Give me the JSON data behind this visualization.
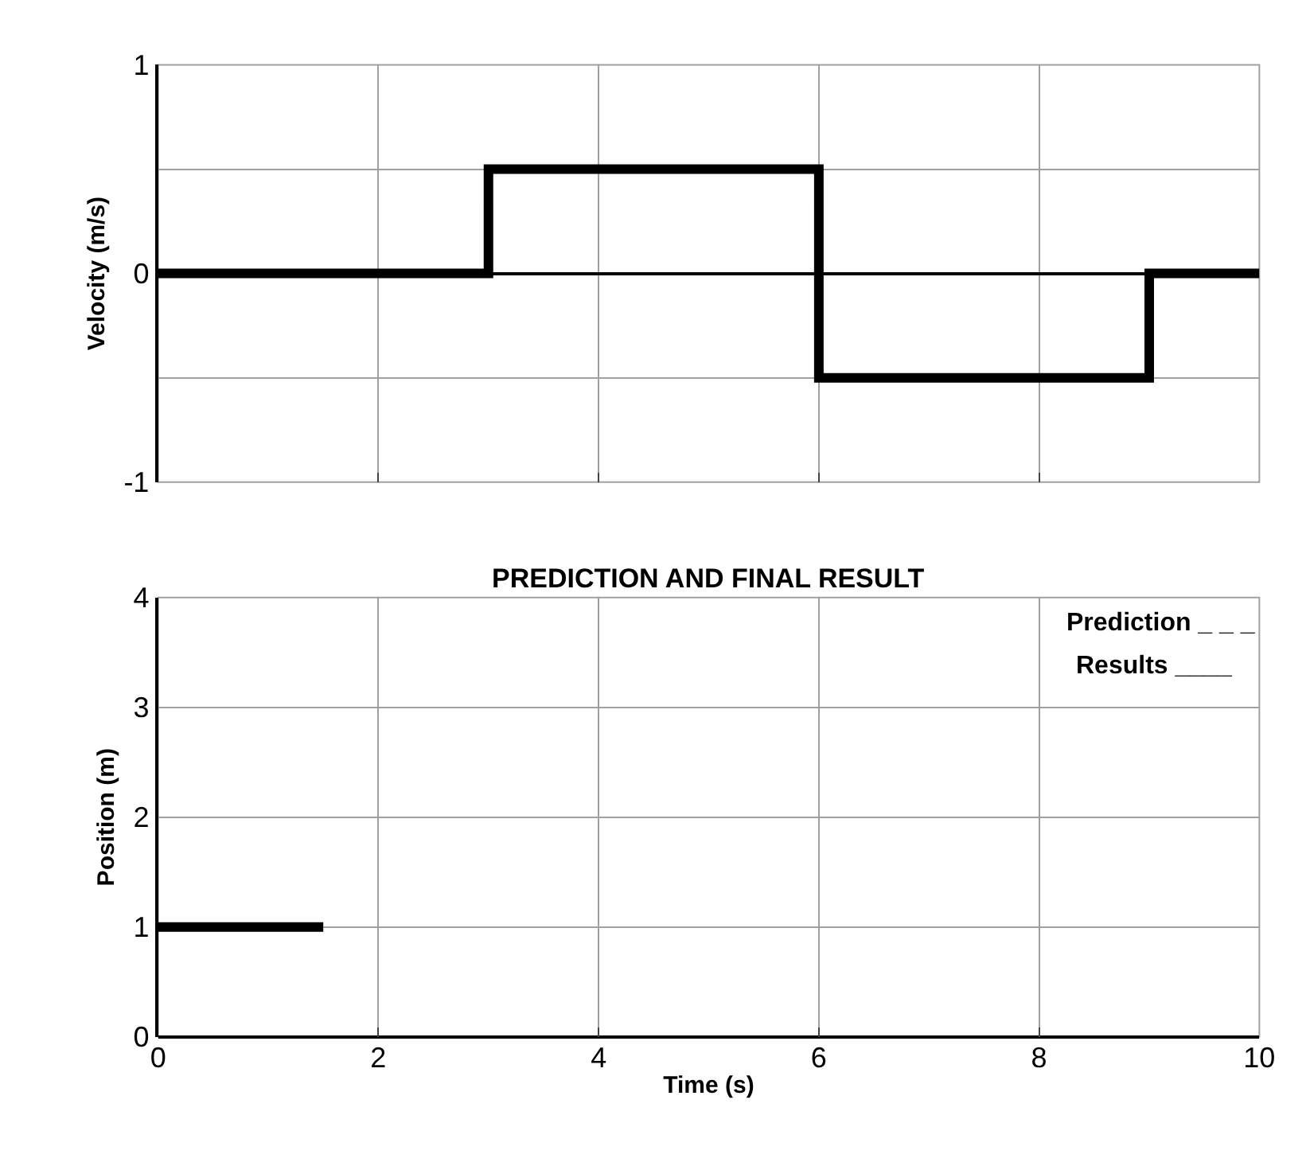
{
  "chart_data": [
    {
      "type": "step",
      "ylabel": "Velocity (m/s)",
      "x": [
        0,
        3,
        6,
        9,
        10
      ],
      "values": [
        0,
        0.5,
        -0.5,
        0,
        0
      ],
      "color": "#000000",
      "xlim": [
        0,
        10
      ],
      "xticks": [
        0,
        2,
        4,
        6,
        8,
        10
      ],
      "ylim": [
        -1,
        1
      ],
      "yticks": [
        -1,
        {
          "value": -0.5,
          "label": null
        },
        0,
        {
          "value": 0.5,
          "label": null
        },
        1
      ],
      "grid": true,
      "tick_labels": "y"
    },
    {
      "type": "line",
      "title": "PREDICTION AND FINAL RESULT",
      "xlabel": "Time (s)",
      "ylabel": "Position (m)",
      "x": [
        0,
        1.5
      ],
      "values": [
        1,
        1
      ],
      "color": "#000000",
      "xlim": [
        0,
        10
      ],
      "xticks": [
        0,
        2,
        4,
        6,
        8,
        10
      ],
      "ylim": [
        0,
        4
      ],
      "yticks": [
        0,
        1,
        2,
        3,
        4
      ],
      "grid": true,
      "annotations": [
        "Prediction _ _ _",
        "Results ____"
      ]
    }
  ]
}
